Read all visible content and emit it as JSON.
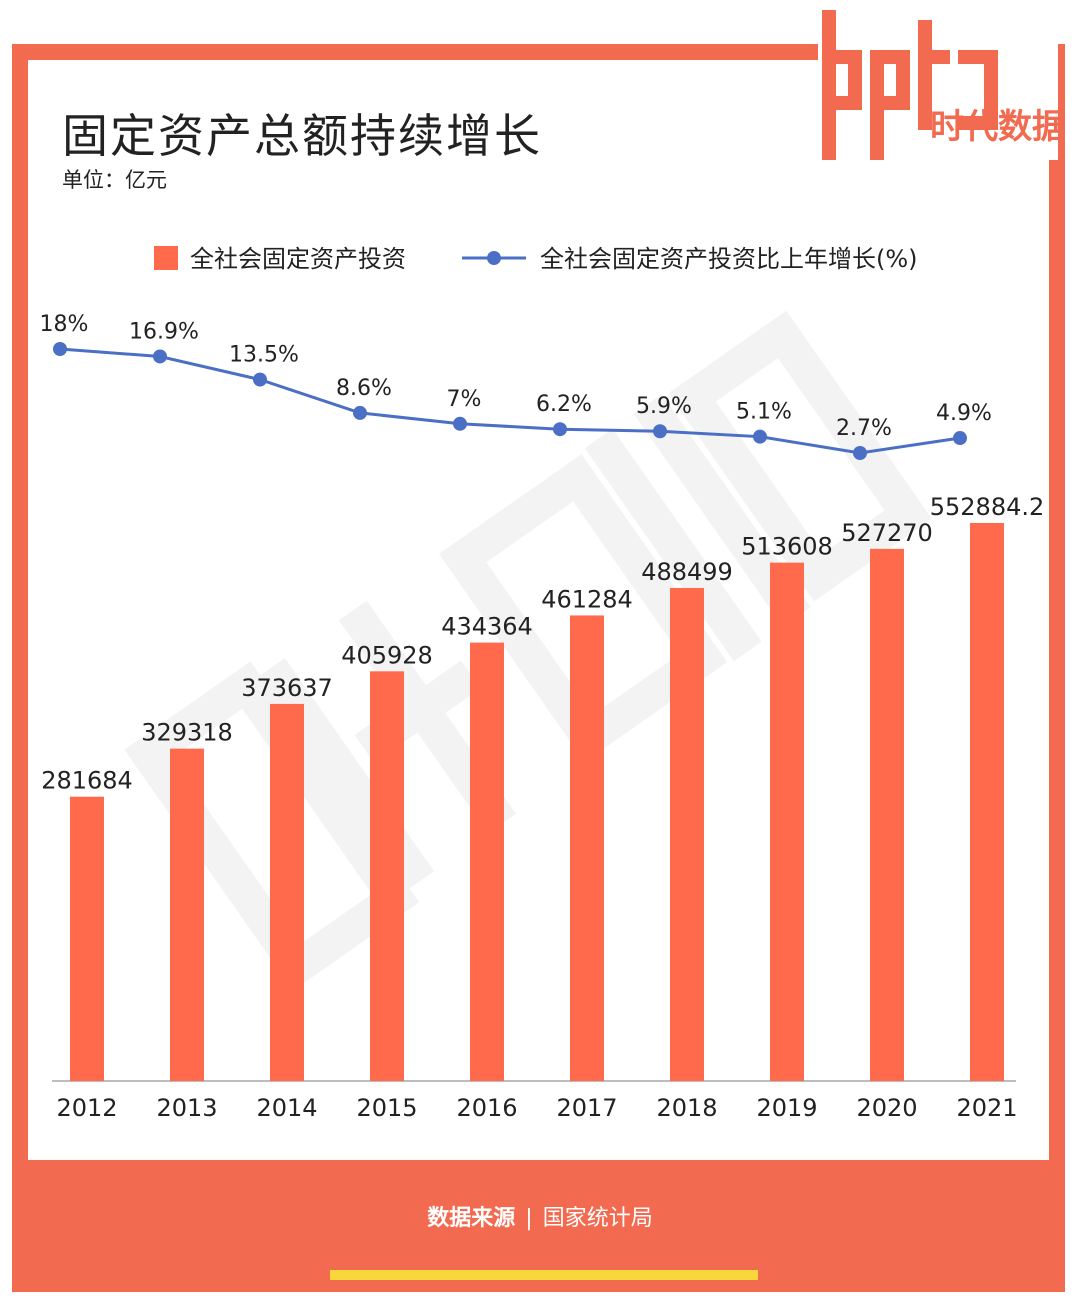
{
  "title": "固定资产总额持续增长",
  "unit": "单位：亿元",
  "logo": {
    "brand_text": "data",
    "cn_text": "时代数据"
  },
  "source": {
    "label": "数据来源",
    "separator": "|",
    "value": "国家统计局"
  },
  "colors": {
    "frame": "#f26a4f",
    "bar": "#ff6a4d",
    "line": "#4a6fc4",
    "yellow": "#f7d73a"
  },
  "chart_data": {
    "type": "bar",
    "categories": [
      "2012",
      "2013",
      "2014",
      "2015",
      "2016",
      "2017",
      "2018",
      "2019",
      "2020",
      "2021"
    ],
    "series": [
      {
        "name": "全社会固定资产投资",
        "kind": "bar",
        "values": [
          281684,
          329318,
          373637,
          405928,
          434364,
          461284,
          488499,
          513608,
          527270,
          552884.2
        ],
        "labels": [
          "281684",
          "329318",
          "373637",
          "405928",
          "434364",
          "461284",
          "488499",
          "513608",
          "527270",
          "552884.2"
        ]
      },
      {
        "name": "全社会固定资产投资比上年增长(%)",
        "kind": "line",
        "values": [
          18,
          16.9,
          13.5,
          8.6,
          7,
          6.2,
          5.9,
          5.1,
          2.7,
          4.9
        ],
        "labels": [
          "18%",
          "16.9%",
          "13.5%",
          "8.6%",
          "7%",
          "6.2%",
          "5.9%",
          "5.1%",
          "2.7%",
          "4.9%"
        ]
      }
    ],
    "legend": [
      "全社会固定资产投资",
      "全社会固定资产投资比上年增长(%)"
    ],
    "legend_position": "top",
    "ylim": [
      0,
      600000
    ]
  }
}
